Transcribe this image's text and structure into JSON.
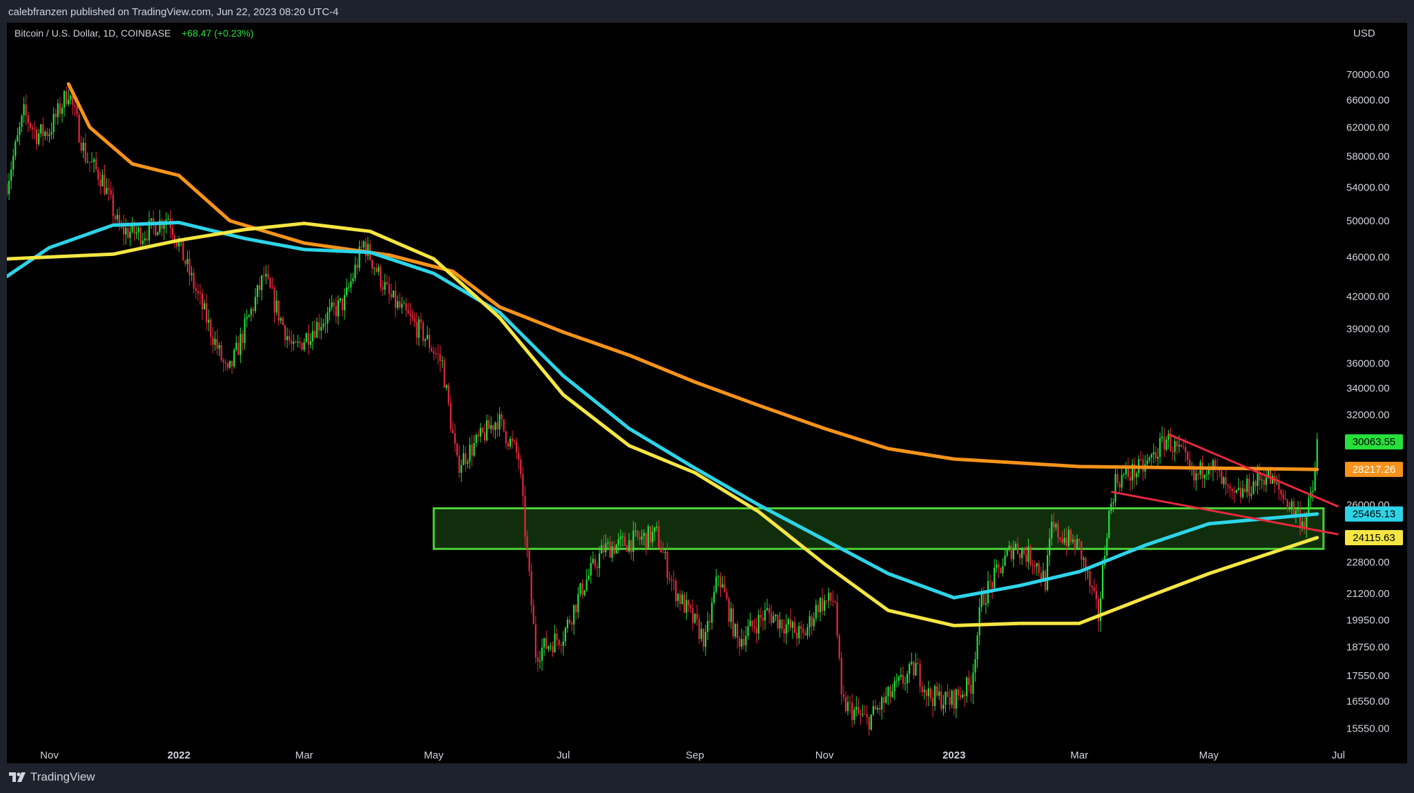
{
  "header": {
    "published_line": "calebfranzen published on TradingView.com, Jun 22, 2023 08:20 UTC-4"
  },
  "legend": {
    "symbol_line": "Bitcoin / U.S. Dollar, 1D, COINBASE",
    "change": "+68.47 (+0.23%)"
  },
  "footer": {
    "brand": "TradingView"
  },
  "chart_data": {
    "type": "line",
    "currency": "USD",
    "scale": "log",
    "ylim": [
      15000,
      74000
    ],
    "x_range": [
      "2021-10-12",
      "2023-07-08"
    ],
    "y_ticks": [
      "70000.00",
      "66000.00",
      "62000.00",
      "58000.00",
      "54000.00",
      "50000.00",
      "46000.00",
      "42000.00",
      "39000.00",
      "36000.00",
      "34000.00",
      "32000.00",
      "26000.00",
      "22800.00",
      "21200.00",
      "19950.00",
      "18750.00",
      "17550.00",
      "16550.00",
      "15550.00"
    ],
    "x_ticks": [
      {
        "label": "Nov",
        "date": "2021-11-01",
        "bold": false
      },
      {
        "label": "2022",
        "date": "2022-01-01",
        "bold": true
      },
      {
        "label": "Mar",
        "date": "2022-03-01",
        "bold": false
      },
      {
        "label": "May",
        "date": "2022-05-01",
        "bold": false
      },
      {
        "label": "Jul",
        "date": "2022-07-01",
        "bold": false
      },
      {
        "label": "Sep",
        "date": "2022-09-01",
        "bold": false
      },
      {
        "label": "Nov",
        "date": "2022-11-01",
        "bold": false
      },
      {
        "label": "2023",
        "date": "2023-01-01",
        "bold": true
      },
      {
        "label": "Mar",
        "date": "2023-03-01",
        "bold": false
      },
      {
        "label": "May",
        "date": "2023-05-01",
        "bold": false
      },
      {
        "label": "Jul",
        "date": "2023-07-01",
        "bold": false
      }
    ],
    "price_path": [
      [
        "2021-10-12",
        54500
      ],
      [
        "2021-10-20",
        64000
      ],
      [
        "2021-10-26",
        61000
      ],
      [
        "2021-11-01",
        61500
      ],
      [
        "2021-11-10",
        67500
      ],
      [
        "2021-11-18",
        58000
      ],
      [
        "2021-11-26",
        55000
      ],
      [
        "2021-12-04",
        49000
      ],
      [
        "2021-12-15",
        48500
      ],
      [
        "2021-12-27",
        50500
      ],
      [
        "2022-01-10",
        42000
      ],
      [
        "2022-01-24",
        35000
      ],
      [
        "2022-02-10",
        44000
      ],
      [
        "2022-02-24",
        37000
      ],
      [
        "2022-03-05",
        39000
      ],
      [
        "2022-03-20",
        41500
      ],
      [
        "2022-03-29",
        47500
      ],
      [
        "2022-04-10",
        42000
      ],
      [
        "2022-04-26",
        38500
      ],
      [
        "2022-05-05",
        36000
      ],
      [
        "2022-05-12",
        28500
      ],
      [
        "2022-05-31",
        31700
      ],
      [
        "2022-06-10",
        29000
      ],
      [
        "2022-06-18",
        18500
      ],
      [
        "2022-07-01",
        19300
      ],
      [
        "2022-07-10",
        21500
      ],
      [
        "2022-07-20",
        23500
      ],
      [
        "2022-08-14",
        24300
      ],
      [
        "2022-08-22",
        21500
      ],
      [
        "2022-09-06",
        19000
      ],
      [
        "2022-09-12",
        22200
      ],
      [
        "2022-09-21",
        19000
      ],
      [
        "2022-10-05",
        20300
      ],
      [
        "2022-10-22",
        19200
      ],
      [
        "2022-10-29",
        20700
      ],
      [
        "2022-11-06",
        20900
      ],
      [
        "2022-11-09",
        16500
      ],
      [
        "2022-11-21",
        15800
      ],
      [
        "2022-12-05",
        17100
      ],
      [
        "2022-12-14",
        17900
      ],
      [
        "2022-12-20",
        16800
      ],
      [
        "2022-12-30",
        16550
      ],
      [
        "2023-01-09",
        17200
      ],
      [
        "2023-01-14",
        20900
      ],
      [
        "2023-01-29",
        23700
      ],
      [
        "2023-02-08",
        22900
      ],
      [
        "2023-02-13",
        21800
      ],
      [
        "2023-02-16",
        24600
      ],
      [
        "2023-03-01",
        23600
      ],
      [
        "2023-03-10",
        20100
      ],
      [
        "2023-03-14",
        24700
      ],
      [
        "2023-03-18",
        27500
      ],
      [
        "2023-04-01",
        28400
      ],
      [
        "2023-04-11",
        30300
      ],
      [
        "2023-04-19",
        29000
      ],
      [
        "2023-04-24",
        27500
      ],
      [
        "2023-05-01",
        28800
      ],
      [
        "2023-05-12",
        26300
      ],
      [
        "2023-05-28",
        27900
      ],
      [
        "2023-06-05",
        26500
      ],
      [
        "2023-06-15",
        25000
      ],
      [
        "2023-06-19",
        26800
      ],
      [
        "2023-06-21",
        30063
      ]
    ],
    "series": [
      {
        "color": "#f7931a",
        "last_value": "28217.26",
        "points": [
          [
            "2021-11-10",
            68500
          ],
          [
            "2021-11-20",
            62000
          ],
          [
            "2021-12-10",
            57000
          ],
          [
            "2022-01-01",
            55500
          ],
          [
            "2022-01-25",
            50000
          ],
          [
            "2022-03-01",
            47500
          ],
          [
            "2022-04-10",
            46200
          ],
          [
            "2022-05-10",
            44500
          ],
          [
            "2022-06-01",
            41000
          ],
          [
            "2022-07-01",
            38700
          ],
          [
            "2022-08-01",
            36700
          ],
          [
            "2022-09-01",
            34500
          ],
          [
            "2022-10-01",
            32700
          ],
          [
            "2022-11-01",
            31000
          ],
          [
            "2022-12-01",
            29600
          ],
          [
            "2023-01-01",
            28900
          ],
          [
            "2023-03-01",
            28400
          ],
          [
            "2023-06-21",
            28217
          ]
        ]
      },
      {
        "color": "#2dd4e8",
        "last_value": "25465.13",
        "points": [
          [
            "2021-10-12",
            44000
          ],
          [
            "2021-11-01",
            47000
          ],
          [
            "2021-12-01",
            49500
          ],
          [
            "2022-01-01",
            49800
          ],
          [
            "2022-02-01",
            48000
          ],
          [
            "2022-03-01",
            46800
          ],
          [
            "2022-04-01",
            46500
          ],
          [
            "2022-05-01",
            44300
          ],
          [
            "2022-06-01",
            40500
          ],
          [
            "2022-07-01",
            35000
          ],
          [
            "2022-08-01",
            31000
          ],
          [
            "2022-09-01",
            28300
          ],
          [
            "2022-10-01",
            26000
          ],
          [
            "2022-11-01",
            24000
          ],
          [
            "2022-12-01",
            22200
          ],
          [
            "2023-01-01",
            21000
          ],
          [
            "2023-02-01",
            21600
          ],
          [
            "2023-03-01",
            22300
          ],
          [
            "2023-04-01",
            23700
          ],
          [
            "2023-05-01",
            24900
          ],
          [
            "2023-06-21",
            25465
          ]
        ]
      },
      {
        "color": "#f5e642",
        "last_value": "24115.63",
        "points": [
          [
            "2021-10-12",
            45800
          ],
          [
            "2021-11-01",
            46000
          ],
          [
            "2021-12-01",
            46300
          ],
          [
            "2022-01-01",
            47800
          ],
          [
            "2022-02-01",
            49000
          ],
          [
            "2022-03-01",
            49700
          ],
          [
            "2022-04-01",
            48800
          ],
          [
            "2022-05-01",
            45800
          ],
          [
            "2022-06-01",
            40000
          ],
          [
            "2022-07-01",
            33500
          ],
          [
            "2022-08-01",
            29800
          ],
          [
            "2022-09-01",
            28000
          ],
          [
            "2022-10-01",
            25600
          ],
          [
            "2022-11-01",
            22700
          ],
          [
            "2022-12-01",
            20400
          ],
          [
            "2023-01-01",
            19700
          ],
          [
            "2023-02-01",
            19800
          ],
          [
            "2023-03-01",
            19800
          ],
          [
            "2023-04-01",
            21000
          ],
          [
            "2023-05-01",
            22200
          ],
          [
            "2023-06-21",
            24115
          ]
        ]
      }
    ],
    "zone": {
      "from_date": "2022-05-01",
      "to_date": "2023-06-24",
      "low": 23500,
      "high": 25800,
      "color": "#4cd137"
    },
    "trendlines": [
      {
        "color": "#e8283e",
        "from": [
          "2023-04-12",
          30600
        ],
        "to": [
          "2023-07-01",
          25900
        ]
      },
      {
        "color": "#e8283e",
        "from": [
          "2023-03-16",
          26800
        ],
        "to": [
          "2023-07-01",
          24300
        ]
      }
    ],
    "price_tags": [
      {
        "value": "30063.55",
        "price": 30063.55,
        "bg": "#26e03b",
        "fg": "#000000"
      },
      {
        "value": "28217.26",
        "price": 28217.26,
        "bg": "#f7931a",
        "fg": "#ffffff"
      },
      {
        "value": "25465.13",
        "price": 25465.13,
        "bg": "#2dd4e8",
        "fg": "#000000"
      },
      {
        "value": "24115.63",
        "price": 24115.63,
        "bg": "#f5e642",
        "fg": "#000000"
      }
    ]
  }
}
